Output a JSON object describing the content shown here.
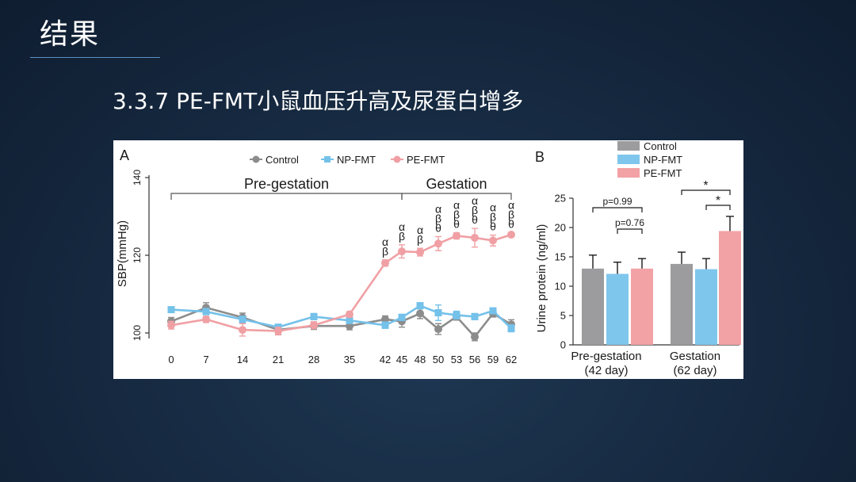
{
  "slide": {
    "title": "结果",
    "subtitle": "3.3.7 PE-FMT小鼠血压升高及尿蛋白增多"
  },
  "chart_data": [
    {
      "panel": "A",
      "type": "line",
      "ylabel": "SBP(mmHg)",
      "ylim": [
        98,
        141
      ],
      "yticks": [
        100,
        120,
        140
      ],
      "x": [
        0,
        7,
        14,
        21,
        28,
        35,
        42,
        45,
        48,
        50,
        53,
        56,
        59,
        62
      ],
      "x_labels": [
        "0",
        "7",
        "14",
        "21",
        "28",
        "35",
        "42",
        "45",
        "48",
        "50",
        "53",
        "56",
        "59",
        "62"
      ],
      "periods": [
        {
          "label": "Pre-gestation",
          "from": 0,
          "to": 45
        },
        {
          "label": "Gestation",
          "from": 45,
          "to": 62
        }
      ],
      "series": [
        {
          "name": "Control",
          "color": "#8c8c8c",
          "marker": "circle",
          "values": [
            103,
            106.5,
            104,
            100.8,
            101.8,
            101.8,
            103.5,
            103,
            105,
            101,
            104.2,
            99,
            105,
            102.2
          ],
          "errors": [
            1,
            1.3,
            1.1,
            1.2,
            0.9,
            1,
            0.9,
            1.5,
            1.3,
            1.4,
            0.9,
            1,
            0.9,
            1.2
          ]
        },
        {
          "name": "NP-FMT",
          "color": "#74c1ea",
          "marker": "square",
          "values": [
            106,
            105.5,
            103.5,
            101.5,
            104.2,
            103.2,
            102,
            104,
            107,
            105.2,
            104.6,
            104.2,
            105.7,
            101.2
          ],
          "errors": [
            0.7,
            0.8,
            0.8,
            0.7,
            0.8,
            0.7,
            0.8,
            0.8,
            0.8,
            2,
            1,
            0.8,
            0.7,
            0.9
          ]
        },
        {
          "name": "PE-FMT",
          "color": "#f0a0a4",
          "marker": "circle",
          "values": [
            102,
            103.5,
            100.8,
            100.5,
            102,
            104.8,
            118,
            121,
            120.8,
            123,
            125,
            124.5,
            123.8,
            125.3
          ],
          "errors": [
            1,
            0.8,
            1.6,
            1,
            0.9,
            0.7,
            0.8,
            1.7,
            1,
            1.8,
            0.8,
            2.4,
            1.4,
            0.5
          ]
        }
      ],
      "annotations": [
        {
          "x": 42,
          "symbols": [
            "α",
            "β"
          ]
        },
        {
          "x": 45,
          "symbols": [
            "α",
            "β"
          ]
        },
        {
          "x": 48,
          "symbols": [
            "α",
            "β"
          ]
        },
        {
          "x": 50,
          "symbols": [
            "α",
            "β",
            "θ"
          ]
        },
        {
          "x": 53,
          "symbols": [
            "α",
            "β",
            "θ"
          ]
        },
        {
          "x": 56,
          "symbols": [
            "α",
            "β",
            "θ"
          ]
        },
        {
          "x": 59,
          "symbols": [
            "α",
            "β",
            "θ"
          ]
        },
        {
          "x": 62,
          "symbols": [
            "α",
            "β",
            "θ"
          ]
        }
      ],
      "legend": [
        "Control",
        "NP-FMT",
        "PE-FMT"
      ],
      "legend_position": "top"
    },
    {
      "panel": "B",
      "type": "bar",
      "ylabel": "Urine protein (ng/ml)",
      "ylim": [
        0,
        25
      ],
      "yticks": [
        0,
        5,
        10,
        15,
        20,
        25
      ],
      "categories": [
        {
          "line1": "Pre-gestation",
          "line2": "(42 day)"
        },
        {
          "line1": "Gestation",
          "line2": "(62 day)"
        }
      ],
      "series": [
        {
          "name": "Control",
          "color": "#9c9c9e",
          "values": [
            13,
            13.8
          ],
          "errors": [
            2.3,
            2
          ]
        },
        {
          "name": "NP-FMT",
          "color": "#7fc6ed",
          "values": [
            12.1,
            12.9
          ],
          "errors": [
            2,
            1.8
          ]
        },
        {
          "name": "PE-FMT",
          "color": "#f2a1a5",
          "values": [
            13,
            19.4
          ],
          "errors": [
            1.7,
            2.5
          ]
        }
      ],
      "comparisons": [
        {
          "group": 0,
          "from": 0,
          "to": 2,
          "label": "p=0.99"
        },
        {
          "group": 0,
          "from": 1,
          "to": 2,
          "label": "p=0.76"
        },
        {
          "group": 1,
          "from": 0,
          "to": 2,
          "label": "*"
        },
        {
          "group": 1,
          "from": 1,
          "to": 2,
          "label": "*"
        }
      ],
      "legend": [
        "Control",
        "NP-FMT",
        "PE-FMT"
      ],
      "legend_position": "top"
    }
  ]
}
